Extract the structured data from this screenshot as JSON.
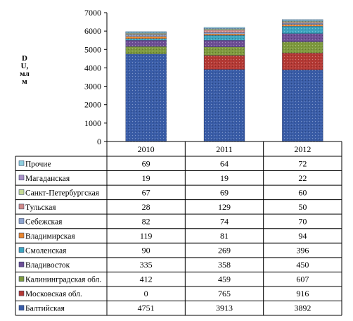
{
  "chart_data": {
    "type": "bar",
    "stacked": true,
    "categories": [
      "2010",
      "2011",
      "2012"
    ],
    "ylabel": "DU, млм",
    "ylim": [
      0,
      7000
    ],
    "yticks": [
      "0",
      "1000",
      "2000",
      "3000",
      "4000",
      "5000",
      "6000",
      "7000"
    ],
    "series": [
      {
        "name": "Балтийская",
        "values": [
          4751,
          3913,
          3892
        ],
        "color": "#3a5da8"
      },
      {
        "name": "Московская обл.",
        "values": [
          0,
          765,
          916
        ],
        "color": "#b53a35"
      },
      {
        "name": "Калининградская обл.",
        "values": [
          412,
          459,
          607
        ],
        "color": "#7e9a3e"
      },
      {
        "name": "Владивосток",
        "values": [
          335,
          358,
          450
        ],
        "color": "#6e4f96"
      },
      {
        "name": "Смоленская",
        "values": [
          90,
          269,
          396
        ],
        "color": "#3da5bf"
      },
      {
        "name": "Владимирская",
        "values": [
          119,
          81,
          94
        ],
        "color": "#e8862e"
      },
      {
        "name": "Себежская",
        "values": [
          82,
          74,
          70
        ],
        "color": "#8ea5cf"
      },
      {
        "name": "Тульская",
        "values": [
          28,
          129,
          50
        ],
        "color": "#d08a88"
      },
      {
        "name": "Санкт-Петербургская",
        "values": [
          67,
          69,
          60
        ],
        "color": "#c6da94"
      },
      {
        "name": "Магаданская",
        "values": [
          19,
          19,
          22
        ],
        "color": "#a88fc4"
      },
      {
        "name": "Прочие",
        "values": [
          69,
          64,
          72
        ],
        "color": "#8ecfdf"
      }
    ]
  }
}
